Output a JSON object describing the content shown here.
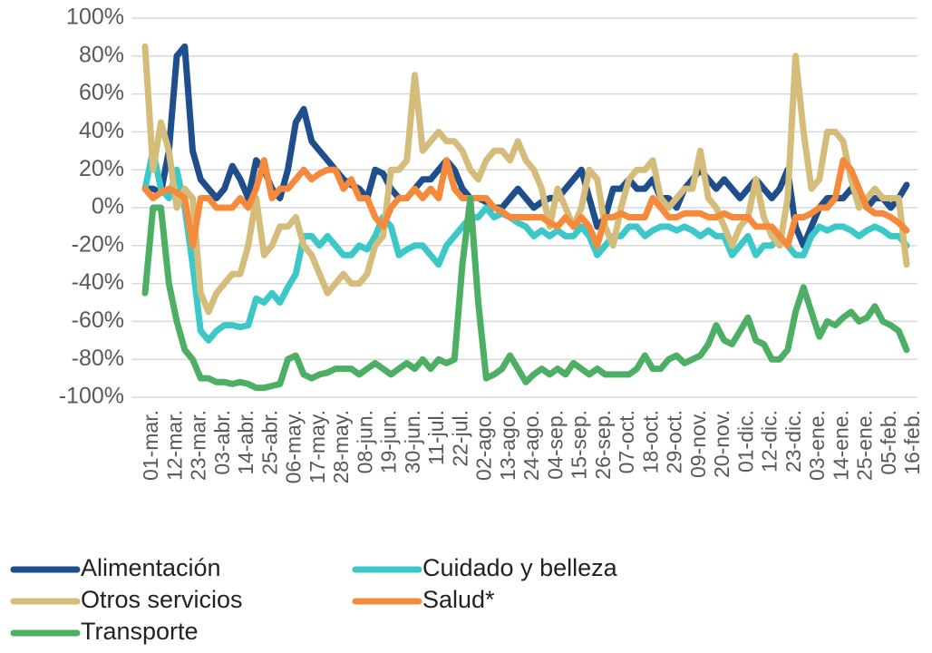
{
  "chart_data": {
    "type": "line",
    "categories": [
      "01-mar.",
      null,
      null,
      "12-mar.",
      null,
      null,
      "23-mar.",
      null,
      null,
      "03-abr.",
      null,
      null,
      "14-abr.",
      null,
      null,
      "25-abr.",
      null,
      null,
      "06-may.",
      null,
      null,
      "17-may.",
      null,
      null,
      "28-may.",
      null,
      null,
      "08-jun.",
      null,
      null,
      "19-jun.",
      null,
      null,
      "30-jun.",
      null,
      null,
      "11-jul.",
      null,
      null,
      "22-jul.",
      null,
      null,
      "02-ago.",
      null,
      null,
      "13-ago.",
      null,
      null,
      "24-ago.",
      null,
      null,
      "04-sep.",
      null,
      null,
      "15-sep.",
      null,
      null,
      "26-sep.",
      null,
      null,
      "07-oct.",
      null,
      null,
      "18-oct.",
      null,
      null,
      "29-oct.",
      null,
      null,
      "09-nov.",
      null,
      null,
      "20-nov.",
      null,
      null,
      "01-dic.",
      null,
      null,
      "12-dic.",
      null,
      null,
      "23-dic.",
      null,
      null,
      "03-ene.",
      null,
      null,
      "14-ene.",
      null,
      null,
      "25-ene.",
      null,
      null,
      "05-feb.",
      null,
      null,
      "16-feb."
    ],
    "series": [
      {
        "name": "Alimentación",
        "color": "#1f4e8c",
        "values": [
          10,
          10,
          8,
          30,
          80,
          85,
          30,
          15,
          10,
          5,
          10,
          22,
          15,
          5,
          25,
          20,
          10,
          5,
          20,
          45,
          52,
          35,
          30,
          25,
          20,
          15,
          12,
          10,
          5,
          20,
          18,
          10,
          5,
          5,
          10,
          15,
          15,
          20,
          25,
          20,
          10,
          5,
          5,
          3,
          0,
          0,
          5,
          10,
          5,
          0,
          3,
          5,
          5,
          10,
          15,
          20,
          5,
          -10,
          -5,
          10,
          10,
          15,
          10,
          10,
          15,
          5,
          5,
          0,
          10,
          15,
          20,
          15,
          10,
          15,
          10,
          5,
          10,
          15,
          10,
          5,
          10,
          20,
          -10,
          -20,
          -10,
          0,
          5,
          5,
          5,
          10,
          5,
          0,
          5,
          5,
          0,
          5,
          12
        ]
      },
      {
        "name": "Cuidado y belleza",
        "color": "#3cc8c8",
        "values": [
          10,
          30,
          10,
          5,
          20,
          0,
          -30,
          -65,
          -70,
          -65,
          -62,
          -62,
          -63,
          -62,
          -48,
          -50,
          -45,
          -50,
          -42,
          -35,
          -15,
          -15,
          -20,
          -15,
          -20,
          -25,
          -25,
          -20,
          -22,
          -15,
          -5,
          -10,
          -25,
          -22,
          -20,
          -20,
          -25,
          -30,
          -20,
          -15,
          -10,
          -5,
          -5,
          0,
          -5,
          -3,
          -5,
          -8,
          -10,
          -15,
          -12,
          -15,
          -12,
          -15,
          -15,
          -10,
          -15,
          -25,
          -20,
          -15,
          -15,
          -10,
          -10,
          -15,
          -12,
          -10,
          -10,
          -12,
          -10,
          -12,
          -15,
          -12,
          -15,
          -15,
          -25,
          -20,
          -15,
          -25,
          -20,
          -20,
          -15,
          -20,
          -25,
          -25,
          -15,
          -10,
          -12,
          -10,
          -10,
          -12,
          -15,
          -12,
          -10,
          -12,
          -15,
          -15,
          -20
        ]
      },
      {
        "name": "Otros servicios",
        "color": "#d4bc7a",
        "values": [
          85,
          20,
          45,
          30,
          0,
          10,
          5,
          -45,
          -55,
          -45,
          -40,
          -35,
          -35,
          -20,
          5,
          -25,
          -20,
          -10,
          -10,
          -5,
          -20,
          -25,
          -35,
          -45,
          -40,
          -35,
          -40,
          -40,
          -35,
          -20,
          -15,
          20,
          20,
          25,
          70,
          30,
          35,
          40,
          35,
          35,
          30,
          20,
          15,
          25,
          30,
          30,
          25,
          35,
          25,
          20,
          10,
          -10,
          10,
          0,
          -10,
          0,
          20,
          15,
          -10,
          -20,
          0,
          15,
          20,
          20,
          25,
          5,
          0,
          5,
          10,
          10,
          30,
          5,
          0,
          -10,
          -20,
          -10,
          -5,
          15,
          -5,
          -15,
          -20,
          5,
          80,
          40,
          10,
          15,
          40,
          40,
          35,
          15,
          0,
          5,
          10,
          5,
          5,
          5,
          -30
        ]
      },
      {
        "name": "Salud*",
        "color": "#f58a3c",
        "values": [
          10,
          5,
          8,
          10,
          8,
          5,
          -20,
          5,
          5,
          0,
          0,
          0,
          5,
          0,
          10,
          25,
          5,
          10,
          10,
          15,
          20,
          15,
          18,
          20,
          20,
          10,
          15,
          5,
          5,
          -5,
          -10,
          0,
          5,
          5,
          10,
          5,
          10,
          5,
          25,
          10,
          5,
          5,
          5,
          5,
          0,
          -2,
          -5,
          -5,
          -5,
          -5,
          -5,
          -8,
          -10,
          -5,
          -10,
          -5,
          -10,
          -20,
          -5,
          -5,
          -3,
          -5,
          -5,
          -5,
          5,
          0,
          -5,
          -5,
          -3,
          -3,
          -3,
          -5,
          -5,
          -3,
          -5,
          -5,
          -5,
          -10,
          -10,
          -10,
          -15,
          -20,
          -5,
          -5,
          -3,
          0,
          0,
          5,
          25,
          20,
          10,
          0,
          -3,
          -3,
          -5,
          -8,
          -12
        ]
      },
      {
        "name": "Transporte",
        "color": "#4caf63",
        "values": [
          -45,
          0,
          0,
          -40,
          -60,
          -75,
          -80,
          -90,
          -90,
          -92,
          -92,
          -93,
          -92,
          -93,
          -95,
          -95,
          -94,
          -93,
          -80,
          -78,
          -88,
          -90,
          -88,
          -87,
          -85,
          -85,
          -85,
          -88,
          -85,
          -82,
          -85,
          -88,
          -85,
          -82,
          -85,
          -80,
          -85,
          -80,
          -82,
          -80,
          -30,
          5,
          -50,
          -90,
          -88,
          -85,
          -78,
          -85,
          -92,
          -88,
          -85,
          -88,
          -85,
          -88,
          -82,
          -85,
          -88,
          -85,
          -88,
          -88,
          -88,
          -88,
          -85,
          -78,
          -85,
          -85,
          -80,
          -78,
          -82,
          -80,
          -78,
          -72,
          -62,
          -70,
          -72,
          -65,
          -58,
          -70,
          -72,
          -80,
          -80,
          -75,
          -55,
          -42,
          -55,
          -68,
          -60,
          -62,
          -58,
          -55,
          -60,
          -58,
          -52,
          -60,
          -62,
          -65,
          -75
        ]
      }
    ],
    "ylim": [
      -100,
      100
    ],
    "yticks": [
      {
        "value": -100,
        "label": "-100%"
      },
      {
        "value": -80,
        "label": "-80%"
      },
      {
        "value": -60,
        "label": "-60%"
      },
      {
        "value": -40,
        "label": "-40%"
      },
      {
        "value": -20,
        "label": "-20%"
      },
      {
        "value": 0,
        "label": "0%"
      },
      {
        "value": 20,
        "label": "20%"
      },
      {
        "value": 40,
        "label": "40%"
      },
      {
        "value": 60,
        "label": "60%"
      },
      {
        "value": 80,
        "label": "80%"
      },
      {
        "value": 100,
        "label": "100%"
      }
    ],
    "grid": true,
    "legend": "bottom"
  }
}
